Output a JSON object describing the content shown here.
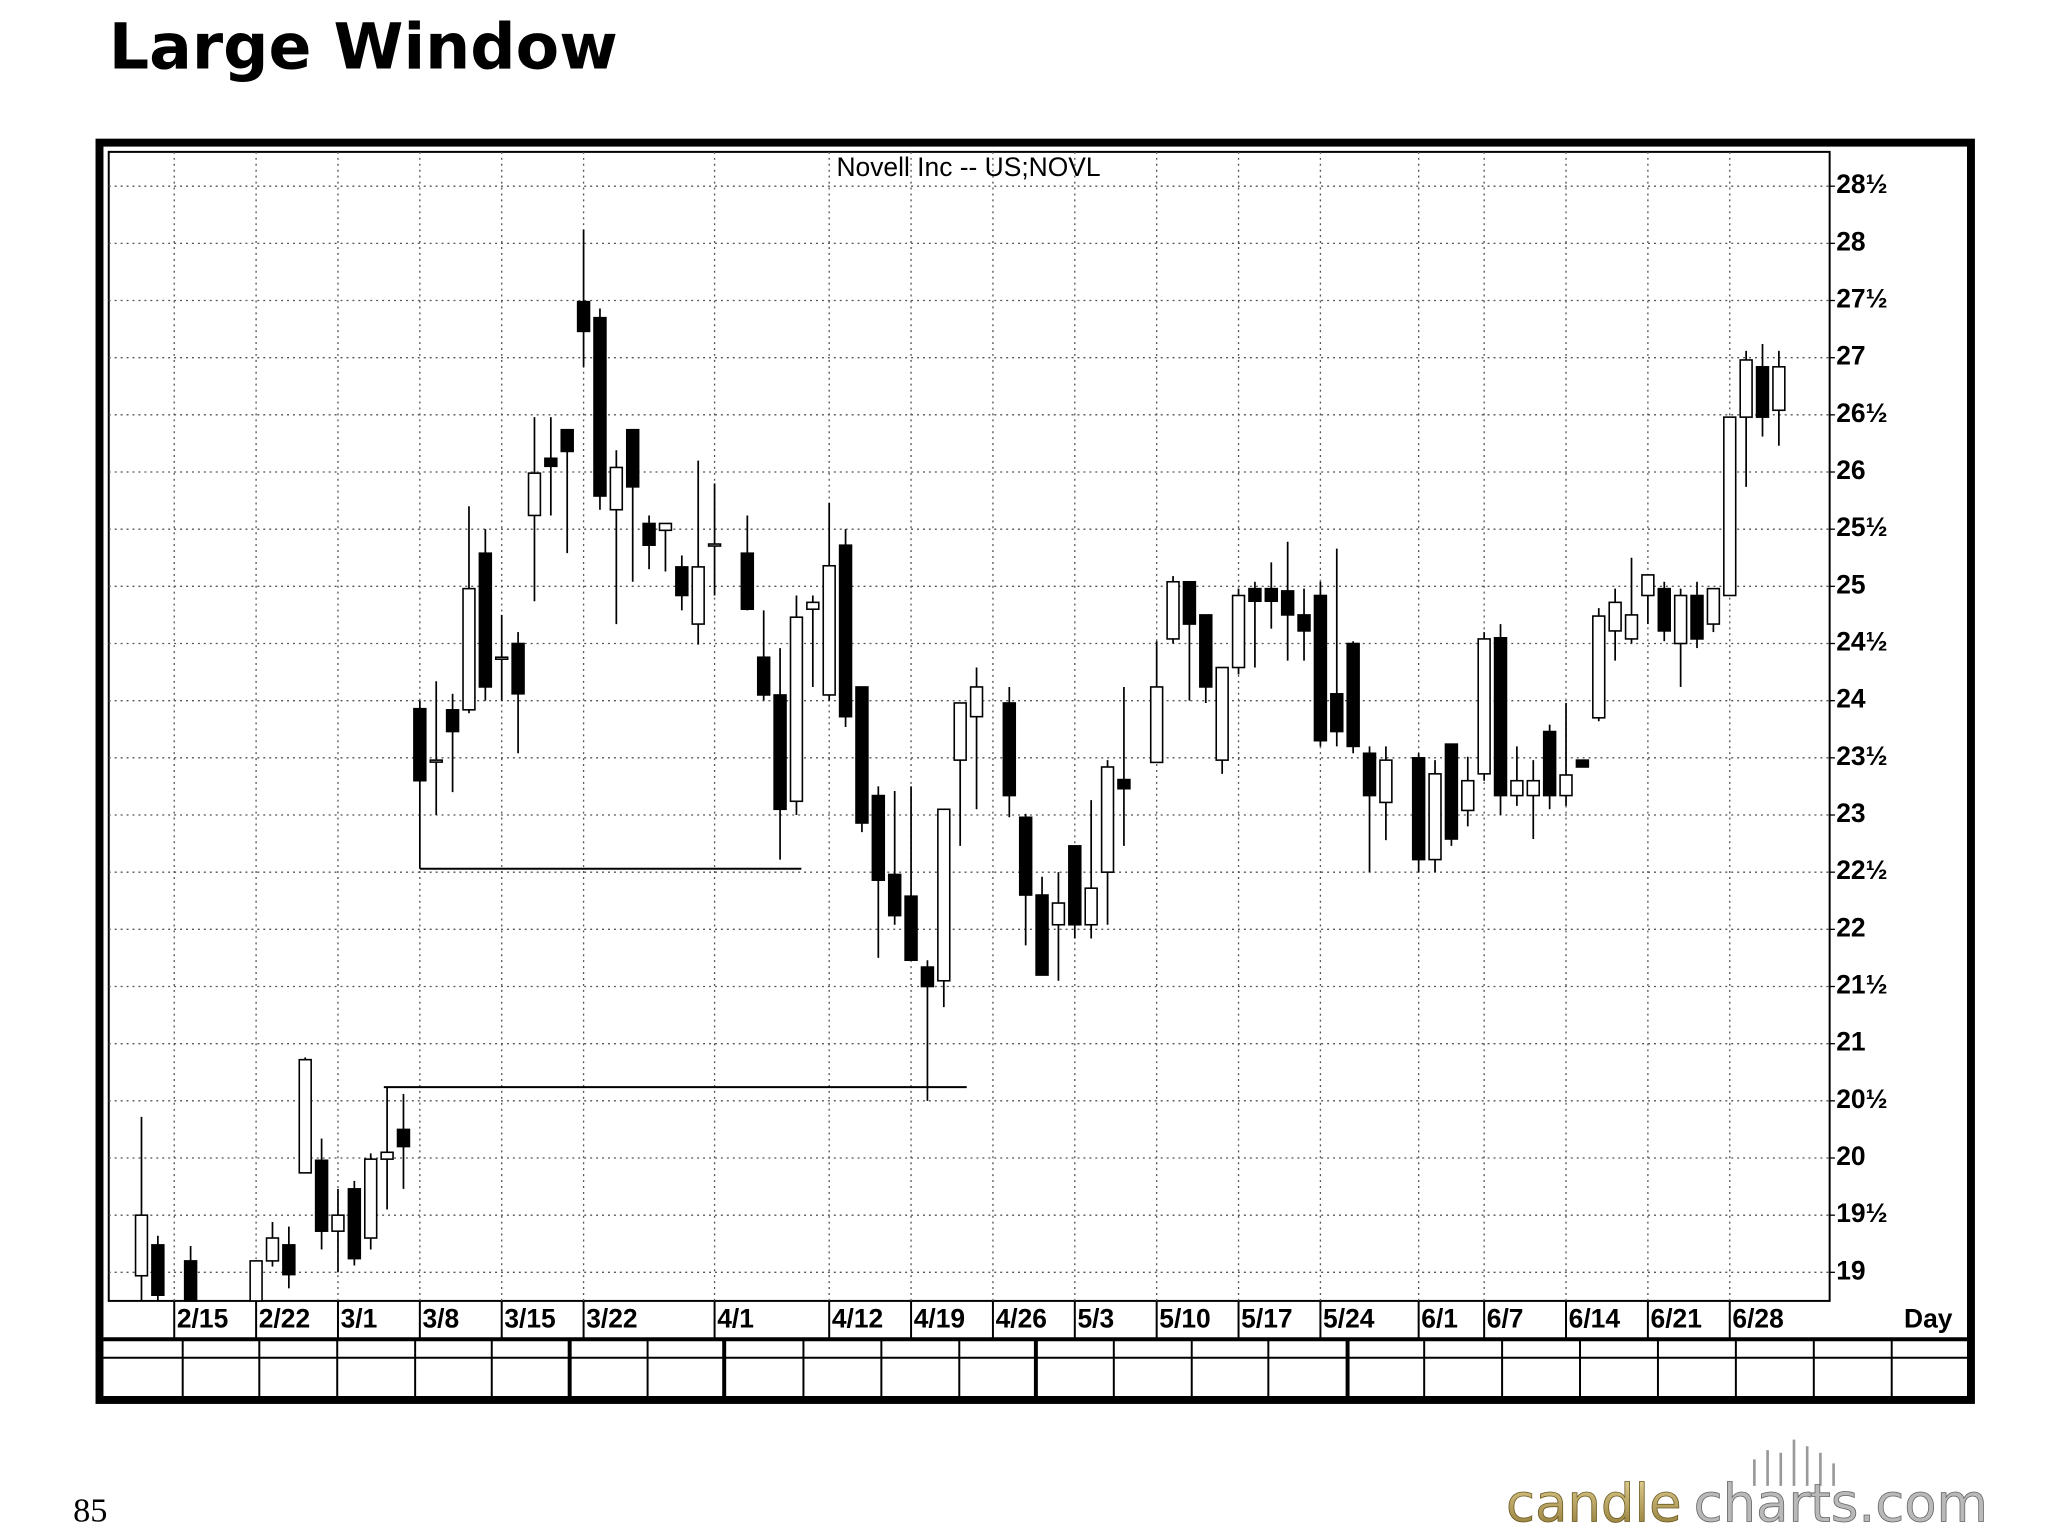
{
  "page_title": "Large Window",
  "page_number": "85",
  "logo": {
    "left": "candle",
    "right": "charts.com"
  },
  "chart_data": {
    "type": "candlestick",
    "title": "Novell  Inc  --  US;NOVL",
    "x_label": "Day",
    "x": [
      0,
      1,
      3,
      7,
      8,
      9,
      10,
      11,
      12,
      13,
      14,
      15,
      16,
      17,
      18,
      19,
      20,
      21,
      22,
      23,
      24,
      25,
      26,
      27,
      28,
      29,
      30,
      31,
      32,
      33,
      34,
      35,
      37,
      38,
      39,
      40,
      41,
      42,
      43,
      44,
      45,
      46,
      47,
      48,
      49,
      50,
      51,
      53,
      54,
      55,
      56,
      57,
      58,
      59,
      60,
      62,
      63,
      64,
      65,
      66,
      67,
      68,
      69,
      70,
      71,
      72,
      73,
      74,
      75,
      76,
      78,
      79,
      80,
      81,
      82,
      83,
      84,
      85,
      86,
      87,
      88,
      89,
      90,
      91,
      92,
      93,
      94,
      95,
      96,
      97,
      98,
      99,
      100
    ],
    "open": [
      18.97,
      19.24,
      19.1,
      18.75,
      19.1,
      19.24,
      19.87,
      19.98,
      19.36,
      19.73,
      19.3,
      19.99,
      20.25,
      23.93,
      23.48,
      23.92,
      23.92,
      25.29,
      24.38,
      24.5,
      25.62,
      26.12,
      26.37,
      27.49,
      27.35,
      25.67,
      26.37,
      25.55,
      25.49,
      25.17,
      24.67,
      25.37,
      25.29,
      24.38,
      24.05,
      23.12,
      24.8,
      24.05,
      25.36,
      24.12,
      23.17,
      22.48,
      22.29,
      21.67,
      21.55,
      23.48,
      23.86,
      23.98,
      22.98,
      22.3,
      22.04,
      22.73,
      22.04,
      22.5,
      23.31,
      23.46,
      24.54,
      25.04,
      24.75,
      23.48,
      24.29,
      24.98,
      24.98,
      24.96,
      24.75,
      24.92,
      24.06,
      24.5,
      23.54,
      23.11,
      23.5,
      22.61,
      23.62,
      23.04,
      23.36,
      24.55,
      23.17,
      23.17,
      23.73,
      23.17,
      23.48,
      23.85,
      24.61,
      24.54,
      24.92,
      24.98,
      24.5,
      24.92,
      24.67,
      24.92,
      26.48,
      26.92,
      26.54
    ],
    "high": [
      20.36,
      19.32,
      19.23,
      19.1,
      19.44,
      19.4,
      20.88,
      20.17,
      19.73,
      19.8,
      20.04,
      20.62,
      20.56,
      24.0,
      24.17,
      24.06,
      25.7,
      25.5,
      24.75,
      24.6,
      26.48,
      26.48,
      26.37,
      28.12,
      27.43,
      26.19,
      26.37,
      25.62,
      25.55,
      25.27,
      26.1,
      25.9,
      25.62,
      24.79,
      24.46,
      24.92,
      24.92,
      25.73,
      25.5,
      24.12,
      23.25,
      23.21,
      23.25,
      21.73,
      23.05,
      23.98,
      24.29,
      24.12,
      23.01,
      22.46,
      22.5,
      22.73,
      23.13,
      23.48,
      24.12,
      24.52,
      25.09,
      25.04,
      24.75,
      24.29,
      24.98,
      25.04,
      25.21,
      25.39,
      24.98,
      25.04,
      25.33,
      24.52,
      23.6,
      23.6,
      23.54,
      23.48,
      23.62,
      23.51,
      24.6,
      24.67,
      23.6,
      23.48,
      23.79,
      23.98,
      23.48,
      24.81,
      24.98,
      25.25,
      25.1,
      25.04,
      24.98,
      25.04,
      24.98,
      26.48,
      27.06,
      27.12,
      27.06
    ],
    "low": [
      18.75,
      18.75,
      18.75,
      18.75,
      19.05,
      18.86,
      19.87,
      19.2,
      19.0,
      19.06,
      19.2,
      19.55,
      19.73,
      22.53,
      23.0,
      23.2,
      23.89,
      24.0,
      24.0,
      23.54,
      24.87,
      25.62,
      25.29,
      26.92,
      25.67,
      24.67,
      25.04,
      25.15,
      25.13,
      24.79,
      24.49,
      24.92,
      24.79,
      24.0,
      22.61,
      23.0,
      24.12,
      24.0,
      23.77,
      22.85,
      21.75,
      22.04,
      21.73,
      20.5,
      21.32,
      22.73,
      23.05,
      22.98,
      21.86,
      21.6,
      21.55,
      21.92,
      21.92,
      22.04,
      22.73,
      23.51,
      24.5,
      24.0,
      23.98,
      23.36,
      24.23,
      24.29,
      24.63,
      24.35,
      24.35,
      23.6,
      23.6,
      23.54,
      22.5,
      22.78,
      22.5,
      22.5,
      22.73,
      22.9,
      23.3,
      23.0,
      23.08,
      22.79,
      23.05,
      23.08,
      23.42,
      23.82,
      24.35,
      24.5,
      24.67,
      24.52,
      24.12,
      24.46,
      24.6,
      24.92,
      25.87,
      26.31,
      26.23
    ],
    "close": [
      19.5,
      18.8,
      18.75,
      19.1,
      19.3,
      18.98,
      20.86,
      19.36,
      19.5,
      19.12,
      19.99,
      20.05,
      20.1,
      23.3,
      23.48,
      23.73,
      24.98,
      24.12,
      24.38,
      24.06,
      25.99,
      26.05,
      26.18,
      27.23,
      25.79,
      26.04,
      25.87,
      25.36,
      25.55,
      24.92,
      25.17,
      25.37,
      24.8,
      24.05,
      23.05,
      24.73,
      24.86,
      25.18,
      23.86,
      22.93,
      22.43,
      22.12,
      21.73,
      21.5,
      23.05,
      23.98,
      24.12,
      23.17,
      22.3,
      21.6,
      22.23,
      22.04,
      22.36,
      23.42,
      23.23,
      24.12,
      25.04,
      24.67,
      24.12,
      24.29,
      24.92,
      24.87,
      24.87,
      24.75,
      24.61,
      23.65,
      23.73,
      23.6,
      23.17,
      23.48,
      22.61,
      23.36,
      22.79,
      23.3,
      24.54,
      23.17,
      23.3,
      23.3,
      23.17,
      23.35,
      23.42,
      24.74,
      24.86,
      24.75,
      25.1,
      24.61,
      24.92,
      24.54,
      24.98,
      26.48,
      26.98,
      26.48,
      26.92
    ],
    "up_color": "#ffffff",
    "down_color": "#000000",
    "windows": [
      {
        "value": 22.53,
        "x": [
          17,
          40.3
        ]
      },
      {
        "value": 20.62,
        "x": [
          14.8,
          50.4
        ]
      }
    ],
    "xlim": [
      -2,
      103.1
    ],
    "xticks": [
      {
        "value": 2,
        "label": "2/15"
      },
      {
        "value": 7,
        "label": "2/22"
      },
      {
        "value": 12,
        "label": "3/1"
      },
      {
        "value": 17,
        "label": "3/8"
      },
      {
        "value": 22,
        "label": "3/15"
      },
      {
        "value": 27,
        "label": "3/22"
      },
      {
        "value": 35,
        "label": "4/1"
      },
      {
        "value": 42,
        "label": "4/12"
      },
      {
        "value": 47,
        "label": "4/19"
      },
      {
        "value": 52,
        "label": "4/26"
      },
      {
        "value": 57,
        "label": "5/3"
      },
      {
        "value": 62,
        "label": "5/10"
      },
      {
        "value": 67,
        "label": "5/17"
      },
      {
        "value": 72,
        "label": "5/24"
      },
      {
        "value": 78,
        "label": "6/1"
      },
      {
        "value": 82,
        "label": "6/7"
      },
      {
        "value": 87,
        "label": "6/14"
      },
      {
        "value": 92,
        "label": "6/21"
      },
      {
        "value": 97,
        "label": "6/28"
      }
    ],
    "ylim": [
      18.75,
      28.8
    ],
    "yticks": [
      19,
      {
        "value": 19.5,
        "label": "19½"
      },
      20,
      {
        "value": 20.5,
        "label": "20½"
      },
      21,
      {
        "value": 21.5,
        "label": "21½"
      },
      22,
      {
        "value": 22.5,
        "label": "22½"
      },
      23,
      {
        "value": 23.5,
        "label": "23½"
      },
      24,
      {
        "value": 24.5,
        "label": "24½"
      },
      25,
      {
        "value": 25.5,
        "label": "25½"
      },
      26,
      {
        "value": 26.5,
        "label": "26½"
      },
      27,
      {
        "value": 27.5,
        "label": "27½"
      },
      28,
      {
        "value": 28.5,
        "label": "28½"
      }
    ],
    "y_axis_side": "right",
    "grid": true
  }
}
